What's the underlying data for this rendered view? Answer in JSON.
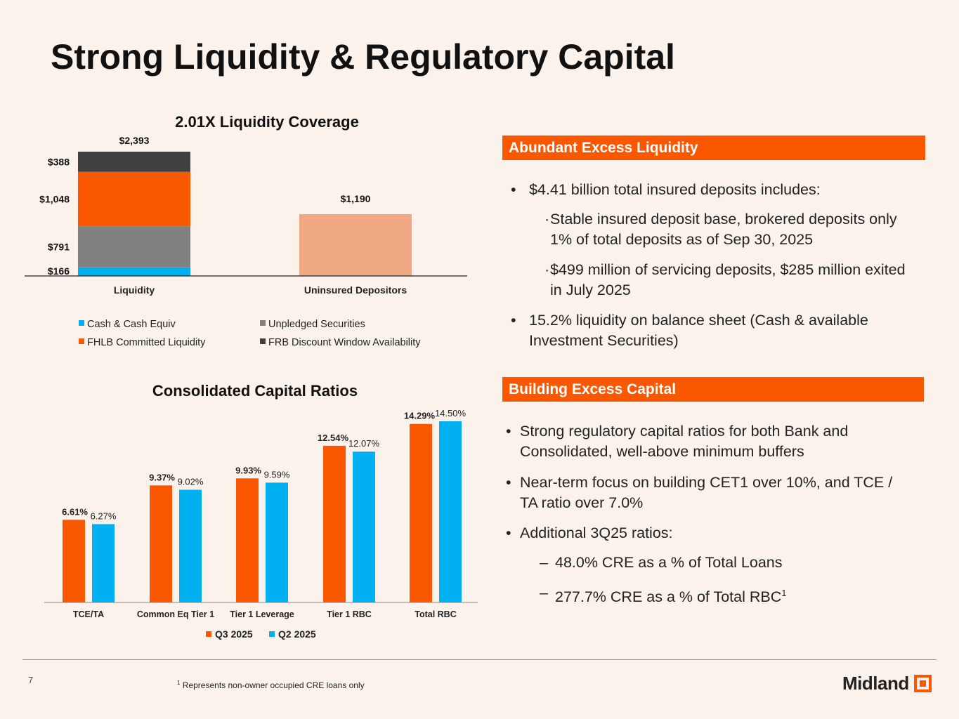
{
  "title": "Strong Liquidity & Regulatory Capital",
  "colors": {
    "accent": "#F95700",
    "blue": "#00B0F0",
    "gray": "#808080",
    "dark": "#404040",
    "peach": "#F0A982",
    "background": "#FBF2EC"
  },
  "chart_data": [
    {
      "type": "bar",
      "stacked": true,
      "title": "2.01X Liquidity Coverage",
      "categories": [
        "Liquidity",
        "Uninsured Depositors"
      ],
      "series": [
        {
          "name": "Cash & Cash Equiv",
          "color": "#00B0F0",
          "values": [
            166,
            null
          ],
          "labels": [
            "$166",
            ""
          ]
        },
        {
          "name": "Unpledged Securities",
          "color": "#808080",
          "values": [
            791,
            null
          ],
          "labels": [
            "$791",
            ""
          ]
        },
        {
          "name": "FHLB Committed Liquidity",
          "color": "#F95700",
          "values": [
            1048,
            null
          ],
          "labels": [
            "$1,048",
            ""
          ]
        },
        {
          "name": "FRB Discount Window Availability",
          "color": "#404040",
          "values": [
            388,
            null
          ],
          "labels": [
            "$388",
            ""
          ]
        },
        {
          "name": "",
          "color": "#F0A982",
          "values": [
            null,
            1190
          ],
          "labels": [
            "",
            "$1,190"
          ]
        }
      ],
      "totals": [
        "$2,393",
        ""
      ],
      "legend_order": [
        0,
        1,
        2,
        3
      ],
      "legend_placement": "bottom",
      "grid": false
    },
    {
      "type": "bar",
      "title": "Consolidated Capital Ratios",
      "categories": [
        "TCE/TA",
        "Common Eq Tier 1",
        "Tier 1 Leverage",
        "Tier 1 RBC",
        "Total RBC"
      ],
      "series": [
        {
          "name": "Q3 2025",
          "color": "#F95700",
          "values": [
            6.61,
            9.37,
            9.93,
            12.54,
            14.29
          ],
          "labels": [
            "6.61%",
            "9.37%",
            "9.93%",
            "12.54%",
            "14.29%"
          ]
        },
        {
          "name": "Q2 2025",
          "color": "#00B0F0",
          "values": [
            6.27,
            9.02,
            9.59,
            12.07,
            14.5
          ],
          "labels": [
            "6.27%",
            "9.02%",
            "9.59%",
            "12.07%",
            "14.50%"
          ]
        }
      ],
      "legend_placement": "bottom",
      "grid": false
    }
  ],
  "liquidity": {
    "header": "Abundant Excess Liquidity",
    "bullets": [
      {
        "marker": "•",
        "text": "$4.41 billion total insured deposits includes:"
      },
      {
        "marker": "·",
        "text": "Stable insured deposit base, brokered deposits only 1% of total deposits as of Sep 30, 2025",
        "sub": true
      },
      {
        "marker": "·",
        "text": "$499 million of servicing deposits, $285 million exited in July 2025",
        "sub": true
      },
      {
        "marker": "•",
        "text": "15.2% liquidity on balance sheet (Cash & available Investment Securities)"
      }
    ]
  },
  "capital": {
    "header": "Building Excess Capital",
    "bullets": [
      {
        "marker": "•",
        "text": "Strong regulatory capital ratios for both Bank and Consolidated, well-above minimum buffers"
      },
      {
        "marker": "•",
        "text": "Near-term focus on building CET1 over 10%, and TCE / TA ratio over 7.0%"
      },
      {
        "marker": "•",
        "text": "Additional 3Q25 ratios:"
      },
      {
        "marker": "–",
        "text": "48.0% CRE as a % of Total Loans",
        "sub": true
      },
      {
        "marker": "–",
        "text": "277.7% CRE as a % of Total RBC",
        "sup": "1",
        "sub": true
      }
    ]
  },
  "footer": {
    "page_number": "7",
    "footnote_mark": "1",
    "footnote": "Represents non-owner occupied CRE loans only",
    "logo": "Midland"
  }
}
